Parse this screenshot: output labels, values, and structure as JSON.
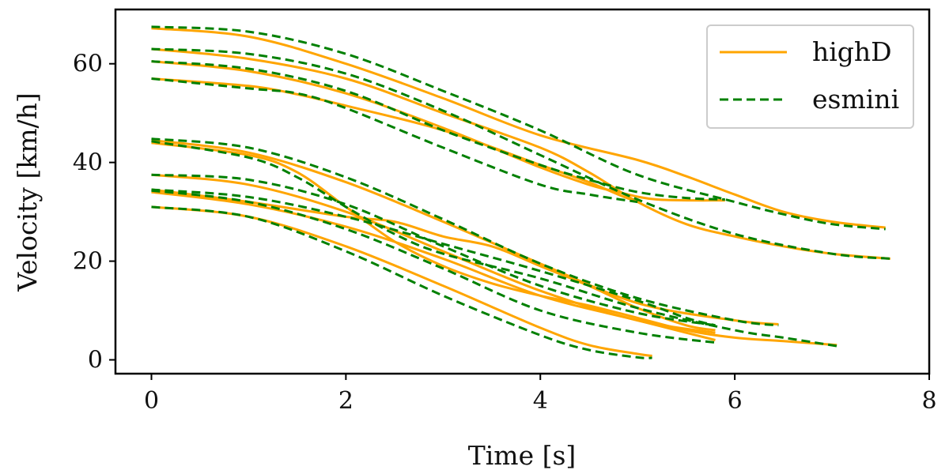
{
  "chart_data": {
    "type": "line",
    "title": "",
    "xlabel": "Time [s]",
    "ylabel": "Velocity [km/h]",
    "xlim": [
      -0.37,
      8.0
    ],
    "ylim": [
      -2.8,
      71.0
    ],
    "xticks": [
      0,
      2,
      4,
      6,
      8
    ],
    "yticks": [
      0,
      20,
      40,
      60
    ],
    "grid": false,
    "legend": {
      "placement": "top-right",
      "entries": [
        "highD",
        "esmini"
      ]
    },
    "colors": {
      "highD": "#ffa500",
      "esmini": "#008000"
    },
    "styles": {
      "highD": "solid",
      "esmini": "dashed"
    },
    "series": [
      {
        "name": "highD",
        "trajectories": [
          [
            [
              0,
              67.2
            ],
            [
              1,
              65.5
            ],
            [
              2,
              60.0
            ],
            [
              3,
              53.0
            ],
            [
              4,
              45.5
            ],
            [
              5,
              40.5
            ],
            [
              5.5,
              37.2
            ],
            [
              6,
              33.5
            ],
            [
              6.5,
              30.0
            ],
            [
              7,
              28.0
            ],
            [
              7.55,
              26.8
            ]
          ],
          [
            [
              0,
              63.0
            ],
            [
              1,
              61.0
            ],
            [
              2,
              57.0
            ],
            [
              3,
              50.0
            ],
            [
              4,
              43.0
            ],
            [
              4.5,
              38.0
            ],
            [
              5,
              32.0
            ],
            [
              5.5,
              27.5
            ],
            [
              6,
              25.0
            ],
            [
              6.5,
              23.0
            ],
            [
              7,
              21.5
            ],
            [
              7.6,
              20.5
            ]
          ],
          [
            [
              0,
              60.5
            ],
            [
              1,
              58.5
            ],
            [
              2,
              54.0
            ],
            [
              3,
              47.0
            ],
            [
              4,
              39.0
            ],
            [
              4.5,
              35.5
            ],
            [
              4.8,
              34.0
            ],
            [
              5.2,
              32.5
            ],
            [
              5.9,
              32.3
            ]
          ],
          [
            [
              0,
              57.0
            ],
            [
              1,
              55.5
            ],
            [
              1.5,
              53.8
            ],
            [
              2,
              51.5
            ],
            [
              3,
              46.5
            ],
            [
              4,
              39.5
            ],
            [
              4.5,
              36.0
            ],
            [
              4.8,
              33.5
            ],
            [
              5,
              32.0
            ]
          ],
          [
            [
              0,
              44.5
            ],
            [
              1,
              42.0
            ],
            [
              2,
              36.0
            ],
            [
              3,
              28.0
            ],
            [
              4,
              19.5
            ],
            [
              5,
              11.5
            ],
            [
              6,
              8.0
            ],
            [
              6.45,
              7.2
            ]
          ],
          [
            [
              0,
              44.0
            ],
            [
              1,
              41.5
            ],
            [
              1.5,
              38.0
            ],
            [
              2,
              31.0
            ],
            [
              2.5,
              24.0
            ],
            [
              3,
              19.0
            ],
            [
              3.5,
              15.5
            ],
            [
              4,
              13.0
            ],
            [
              4.5,
              11.0
            ],
            [
              5,
              8.5
            ],
            [
              5.5,
              6.0
            ],
            [
              6,
              4.5
            ],
            [
              6.5,
              3.8
            ],
            [
              7.05,
              3.0
            ]
          ],
          [
            [
              0,
              37.5
            ],
            [
              1,
              35.5
            ],
            [
              2,
              30.0
            ],
            [
              3,
              22.0
            ],
            [
              4,
              14.0
            ],
            [
              5,
              8.0
            ],
            [
              5.8,
              5.5
            ]
          ],
          [
            [
              0,
              34.5
            ],
            [
              1,
              32.0
            ],
            [
              2,
              29.0
            ],
            [
              2.5,
              28.0
            ],
            [
              3,
              25.0
            ],
            [
              3.5,
              23.0
            ],
            [
              4,
              19.0
            ],
            [
              4.5,
              15.0
            ],
            [
              5,
              10.5
            ],
            [
              5.5,
              7.0
            ],
            [
              5.8,
              6.0
            ]
          ],
          [
            [
              0,
              34.0
            ],
            [
              1,
              31.5
            ],
            [
              2,
              27.0
            ],
            [
              3,
              20.5
            ],
            [
              4,
              13.0
            ],
            [
              5,
              8.0
            ],
            [
              5.8,
              4.0
            ]
          ],
          [
            [
              0,
              31.0
            ],
            [
              1,
              29.0
            ],
            [
              2,
              23.0
            ],
            [
              3,
              15.0
            ],
            [
              4,
              6.5
            ],
            [
              4.5,
              3.0
            ],
            [
              5,
              1.2
            ],
            [
              5.15,
              0.8
            ]
          ]
        ]
      },
      {
        "name": "esmini",
        "trajectories": [
          [
            [
              0,
              67.5
            ],
            [
              1,
              66.5
            ],
            [
              2,
              62.0
            ],
            [
              3,
              54.5
            ],
            [
              4,
              46.5
            ],
            [
              5,
              37.5
            ],
            [
              6,
              32.0
            ],
            [
              6.5,
              29.5
            ],
            [
              7,
              27.5
            ],
            [
              7.55,
              26.5
            ]
          ],
          [
            [
              0,
              63.0
            ],
            [
              1,
              62.0
            ],
            [
              2,
              58.0
            ],
            [
              3,
              50.5
            ],
            [
              4,
              41.5
            ],
            [
              5,
              32.5
            ],
            [
              6,
              25.5
            ],
            [
              7,
              21.5
            ],
            [
              7.6,
              20.5
            ]
          ],
          [
            [
              0,
              60.5
            ],
            [
              1,
              59.0
            ],
            [
              2,
              54.5
            ],
            [
              3,
              46.5
            ],
            [
              4,
              39.5
            ],
            [
              4.5,
              36.5
            ],
            [
              5,
              34.0
            ],
            [
              5.5,
              32.8
            ],
            [
              5.9,
              32.5
            ]
          ],
          [
            [
              0,
              57.0
            ],
            [
              1,
              55.0
            ],
            [
              1.5,
              54.0
            ],
            [
              2,
              51.0
            ],
            [
              3,
              43.0
            ],
            [
              4,
              35.5
            ],
            [
              4.5,
              33.5
            ],
            [
              5,
              32.0
            ]
          ],
          [
            [
              0,
              44.8
            ],
            [
              1,
              43.0
            ],
            [
              2,
              37.0
            ],
            [
              3,
              28.5
            ],
            [
              4,
              19.5
            ],
            [
              5,
              12.5
            ],
            [
              6,
              8.0
            ],
            [
              6.45,
              7.0
            ]
          ],
          [
            [
              0,
              44.3
            ],
            [
              1,
              41.0
            ],
            [
              1.5,
              37.0
            ],
            [
              2,
              31.0
            ],
            [
              2.5,
              25.5
            ],
            [
              3,
              21.5
            ],
            [
              4,
              16.5
            ],
            [
              5,
              10.5
            ],
            [
              6,
              6.0
            ],
            [
              6.5,
              4.5
            ],
            [
              7.05,
              2.8
            ]
          ],
          [
            [
              0,
              37.5
            ],
            [
              1,
              36.5
            ],
            [
              2,
              31.5
            ],
            [
              3,
              23.0
            ],
            [
              4,
              15.0
            ],
            [
              5,
              9.5
            ],
            [
              5.8,
              7.0
            ]
          ],
          [
            [
              0,
              34.5
            ],
            [
              1,
              33.0
            ],
            [
              2,
              29.0
            ],
            [
              3,
              23.5
            ],
            [
              4,
              18.0
            ],
            [
              5,
              12.0
            ],
            [
              5.5,
              8.5
            ],
            [
              5.8,
              7.0
            ]
          ],
          [
            [
              0,
              34.3
            ],
            [
              1,
              32.0
            ],
            [
              2,
              26.5
            ],
            [
              3,
              18.5
            ],
            [
              4,
              10.0
            ],
            [
              5,
              5.5
            ],
            [
              5.8,
              3.5
            ]
          ],
          [
            [
              0,
              31.0
            ],
            [
              1,
              29.0
            ],
            [
              2,
              22.0
            ],
            [
              3,
              13.0
            ],
            [
              4,
              5.0
            ],
            [
              4.5,
              2.0
            ],
            [
              5,
              0.5
            ],
            [
              5.15,
              0.4
            ]
          ]
        ]
      }
    ]
  }
}
